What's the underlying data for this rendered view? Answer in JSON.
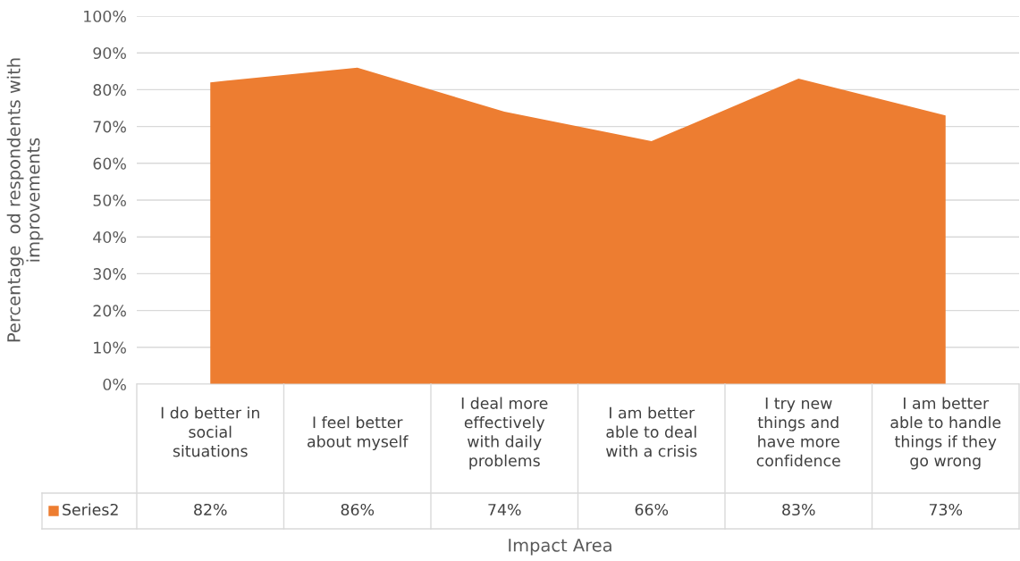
{
  "chart_data": {
    "type": "area",
    "xlabel": "Impact Area",
    "ylabel": "Percentage  od respondents with\nimprovements",
    "categories": [
      "I do better in\nsocial\nsituations",
      "I feel better\nabout myself",
      "I deal more\neffectively\nwith daily\nproblems",
      "I am better\nable to deal\nwith a crisis",
      "I try new\nthings and\nhave more\nconfidence",
      "I am better\nable to handle\nthings if they\ngo wrong"
    ],
    "series": [
      {
        "name": "Series2",
        "color": "#ed7d31",
        "values": [
          82,
          86,
          74,
          66,
          83,
          73
        ],
        "value_labels": [
          "82%",
          "86%",
          "74%",
          "66%",
          "83%",
          "73%"
        ]
      }
    ],
    "ylim": [
      0,
      100
    ],
    "yticks": [
      {
        "value": 0,
        "label": "0%"
      },
      {
        "value": 10,
        "label": "10%"
      },
      {
        "value": 20,
        "label": "20%"
      },
      {
        "value": 30,
        "label": "30%"
      },
      {
        "value": 40,
        "label": "40%"
      },
      {
        "value": 50,
        "label": "50%"
      },
      {
        "value": 60,
        "label": "60%"
      },
      {
        "value": 70,
        "label": "70%"
      },
      {
        "value": 80,
        "label": "80%"
      },
      {
        "value": 90,
        "label": "90%"
      },
      {
        "value": 100,
        "label": "100%"
      }
    ],
    "grid": "y",
    "legend": "bottom"
  }
}
